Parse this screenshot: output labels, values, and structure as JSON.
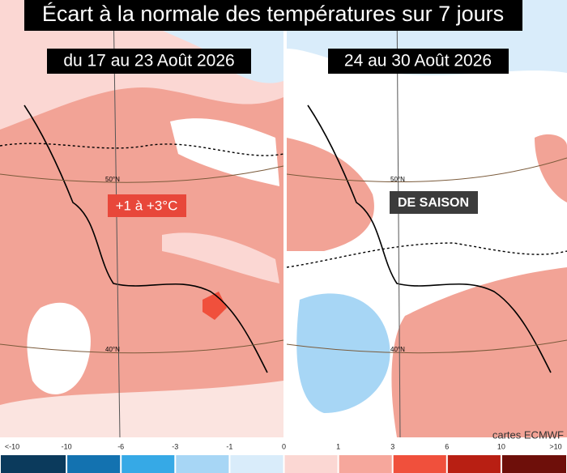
{
  "header": {
    "title": "Écart à la normale des températures sur 7 jours"
  },
  "panels": [
    {
      "subtitle": "du 17 au 23 Août 2026",
      "label": "+1 à +3°C",
      "label_color": "#e8473a",
      "lat_labels": [
        "50°N",
        "40°N"
      ]
    },
    {
      "subtitle": "24 au 30 Août 2026",
      "label": "DE SAISON",
      "label_color": "#3c3c3c",
      "lat_labels": [
        "50°N",
        "40°N"
      ]
    }
  ],
  "credit": "cartes ECMWF",
  "legend": {
    "labels": [
      "<-10",
      "-10",
      "-6",
      "-3",
      "-1",
      "0",
      "1",
      "3",
      "6",
      "10",
      ">10"
    ],
    "colors": [
      "#0b3a5c",
      "#1372b0",
      "#36a9e6",
      "#a7d6f5",
      "#d9ecfa",
      "#fbd7d3",
      "#f6a79c",
      "#f0503c",
      "#b81f13",
      "#6e0f0a"
    ]
  }
}
